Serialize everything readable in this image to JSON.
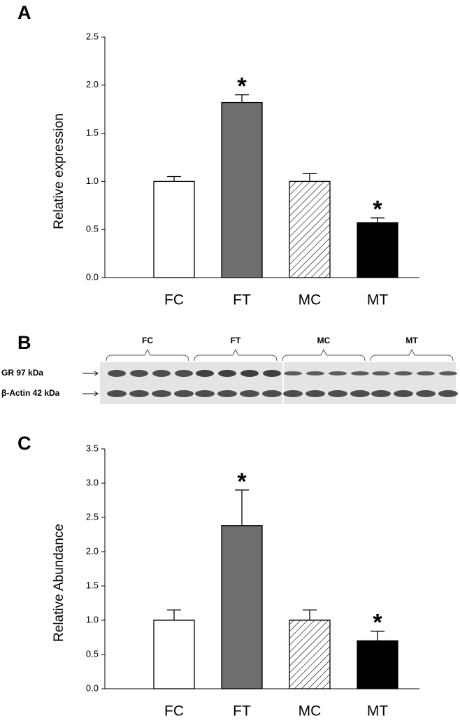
{
  "chart_data": [
    {
      "type": "bar",
      "panel_label": "A",
      "y_label": "Relative expression",
      "categories": [
        "FC",
        "FT",
        "MC",
        "MT"
      ],
      "values": [
        1.0,
        1.82,
        1.0,
        0.57
      ],
      "errors": [
        0.05,
        0.08,
        0.08,
        0.05
      ],
      "significance": [
        null,
        "*",
        null,
        "*"
      ],
      "ylim": [
        0,
        2.5
      ],
      "yticks": [
        {
          "value": 0,
          "label": "0.0"
        },
        {
          "value": 0.5,
          "label": "0.5"
        },
        {
          "value": 1,
          "label": "1.0"
        },
        {
          "value": 1.5,
          "label": "1.5"
        },
        {
          "value": 2,
          "label": "2.0"
        },
        {
          "value": 2.5,
          "label": "2.5"
        }
      ]
    },
    {
      "type": "bar",
      "panel_label": "C",
      "y_label": "Relative Abundance",
      "categories": [
        "FC",
        "FT",
        "MC",
        "MT"
      ],
      "values": [
        1.0,
        2.38,
        1.0,
        0.7
      ],
      "errors": [
        0.15,
        0.52,
        0.15,
        0.14
      ],
      "significance": [
        null,
        "*",
        null,
        "*"
      ],
      "ylim": [
        0,
        3.5
      ],
      "yticks": [
        {
          "value": 0,
          "label": "0.0"
        },
        {
          "value": 0.5,
          "label": "0.5"
        },
        {
          "value": 1,
          "label": "1.0"
        },
        {
          "value": 1.5,
          "label": "1.5"
        },
        {
          "value": 2,
          "label": "2.0"
        },
        {
          "value": 2.5,
          "label": "2.5"
        },
        {
          "value": 3,
          "label": "3.0"
        },
        {
          "value": 3.5,
          "label": "3.5"
        }
      ]
    }
  ],
  "blot": {
    "panel_label": "B",
    "groups": [
      "FC",
      "FT",
      "MC",
      "MT"
    ],
    "rows": [
      "GR 97 kDa",
      "β-Actin 42 kDa"
    ]
  }
}
